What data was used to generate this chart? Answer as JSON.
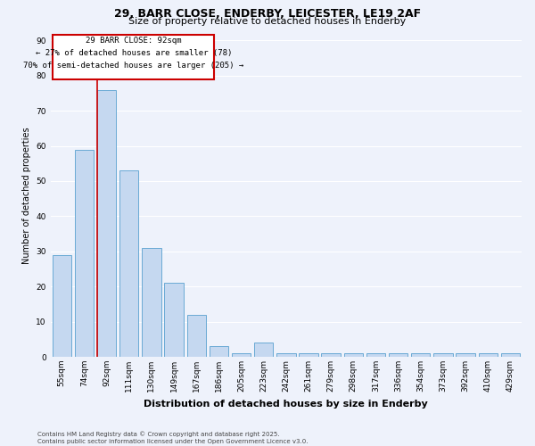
{
  "title1": "29, BARR CLOSE, ENDERBY, LEICESTER, LE19 2AF",
  "title2": "Size of property relative to detached houses in Enderby",
  "xlabel": "Distribution of detached houses by size in Enderby",
  "ylabel": "Number of detached properties",
  "categories": [
    "55sqm",
    "74sqm",
    "92sqm",
    "111sqm",
    "130sqm",
    "149sqm",
    "167sqm",
    "186sqm",
    "205sqm",
    "223sqm",
    "242sqm",
    "261sqm",
    "279sqm",
    "298sqm",
    "317sqm",
    "336sqm",
    "354sqm",
    "373sqm",
    "392sqm",
    "410sqm",
    "429sqm"
  ],
  "values": [
    29,
    59,
    76,
    53,
    31,
    21,
    12,
    3,
    1,
    4,
    1,
    1,
    1,
    1,
    1,
    1,
    1,
    1,
    1,
    1,
    1
  ],
  "bar_color": "#c5d8f0",
  "bar_edge_color": "#6aaad4",
  "highlight_index": 2,
  "vline_color": "#cc0000",
  "annotation_line1": "29 BARR CLOSE: 92sqm",
  "annotation_line2": "← 27% of detached houses are smaller (78)",
  "annotation_line3": "70% of semi-detached houses are larger (205) →",
  "annotation_box_color": "#ffffff",
  "annotation_box_edge": "#cc0000",
  "footer": "Contains HM Land Registry data © Crown copyright and database right 2025.\nContains public sector information licensed under the Open Government Licence v3.0.",
  "ylim": [
    0,
    92
  ],
  "yticks": [
    0,
    10,
    20,
    30,
    40,
    50,
    60,
    70,
    80,
    90
  ],
  "background_color": "#eef2fb",
  "grid_color": "#ffffff",
  "title1_fontsize": 9,
  "title2_fontsize": 8,
  "xlabel_fontsize": 8,
  "ylabel_fontsize": 7,
  "tick_fontsize": 6.5,
  "footer_fontsize": 5
}
